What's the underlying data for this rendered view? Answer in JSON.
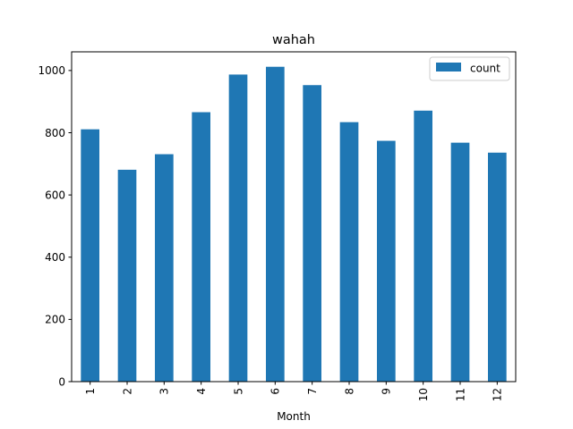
{
  "chart_data": {
    "type": "bar",
    "title": "wahah",
    "xlabel": "Month",
    "ylabel": "",
    "categories": [
      "1",
      "2",
      "3",
      "4",
      "5",
      "6",
      "7",
      "8",
      "9",
      "10",
      "11",
      "12"
    ],
    "series": [
      {
        "name": "count",
        "color": "#1f77b4",
        "values": [
          811,
          681,
          731,
          866,
          987,
          1012,
          953,
          834,
          774,
          871,
          768,
          736
        ]
      }
    ],
    "ylim": [
      0,
      1060
    ],
    "yticks": [
      0,
      200,
      400,
      600,
      800,
      1000
    ],
    "grid": false,
    "legend_position": "top-right",
    "x_tick_rotation": "vertical"
  }
}
